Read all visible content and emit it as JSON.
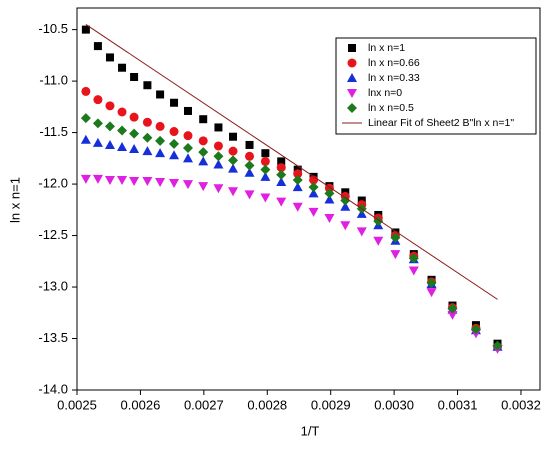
{
  "chart_data": {
    "type": "scatter",
    "x_label": "1/T",
    "y_label": "ln x  n=1",
    "xlim": [
      0.0025,
      0.00323
    ],
    "ylim": [
      -14.0,
      -10.29
    ],
    "xticks": [
      0.0025,
      0.0026,
      0.0027,
      0.0028,
      0.0029,
      {
        "value": 0.003,
        "label": "0.0030"
      },
      0.0031,
      0.0032
    ],
    "yticks": [
      -10.5,
      {
        "value": -11,
        "label": "-11.0"
      },
      -11.5,
      {
        "value": -12,
        "label": "-12.0"
      },
      -12.5,
      {
        "value": -13,
        "label": "-13.0"
      },
      -13.5,
      {
        "value": -14,
        "label": "-14.0"
      }
    ],
    "legend": "top-right",
    "x": [
      0.002514,
      0.002533,
      0.002552,
      0.002571,
      0.00259,
      0.002611,
      0.002631,
      0.002653,
      0.002675,
      0.002699,
      0.002723,
      0.002746,
      0.002772,
      0.002797,
      0.002822,
      0.002848,
      0.002873,
      0.002898,
      0.002923,
      0.002949,
      0.002975,
      0.003002,
      0.003031,
      0.003059,
      0.003092,
      0.003129,
      0.003163
    ],
    "series": [
      {
        "name": "ln x  n=1",
        "color": "#000000",
        "marker": "square",
        "values": [
          -10.5,
          -10.66,
          -10.77,
          -10.87,
          -10.96,
          -11.04,
          -11.13,
          -11.21,
          -11.29,
          -11.37,
          -11.45,
          -11.54,
          -11.62,
          -11.7,
          -11.78,
          -11.86,
          -11.93,
          -12.02,
          -12.08,
          -12.16,
          -12.3,
          -12.47,
          -12.68,
          -12.93,
          -13.18,
          -13.37,
          -13.55
        ]
      },
      {
        "name": "ln x n=0.66",
        "color": "#e8141b",
        "marker": "circle",
        "values": [
          -11.1,
          -11.18,
          -11.24,
          -11.3,
          -11.35,
          -11.4,
          -11.44,
          -11.49,
          -11.53,
          -11.58,
          -11.63,
          -11.68,
          -11.73,
          -11.78,
          -11.84,
          -11.9,
          -11.96,
          -12.04,
          -12.12,
          -12.2,
          -12.33,
          -12.5,
          -12.7,
          -12.95,
          -13.2,
          -13.4,
          -13.58
        ]
      },
      {
        "name": "ln x n=0.33",
        "color": "#1530d8",
        "marker": "triangle-up",
        "values": [
          -11.57,
          -11.6,
          -11.62,
          -11.64,
          -11.66,
          -11.68,
          -11.7,
          -11.72,
          -11.75,
          -11.78,
          -11.81,
          -11.85,
          -11.89,
          -11.93,
          -11.98,
          -12.03,
          -12.09,
          -12.15,
          -12.22,
          -12.29,
          -12.4,
          -12.55,
          -12.73,
          -12.97,
          -13.22,
          -13.42,
          -13.58
        ]
      },
      {
        "name": "lnx n=0",
        "color": "#e020e0",
        "marker": "triangle-down",
        "values": [
          -11.95,
          -11.95,
          -11.96,
          -11.96,
          -11.97,
          -11.97,
          -11.98,
          -11.99,
          -12.0,
          -12.02,
          -12.04,
          -12.07,
          -12.1,
          -12.13,
          -12.17,
          -12.22,
          -12.27,
          -12.33,
          -12.4,
          -12.46,
          -12.55,
          -12.68,
          -12.84,
          -13.05,
          -13.27,
          -13.45,
          -13.6
        ]
      },
      {
        "name": "ln x n=0.5",
        "color": "#1c7a1c",
        "marker": "diamond",
        "values": [
          -11.36,
          -11.41,
          -11.44,
          -11.48,
          -11.51,
          -11.55,
          -11.58,
          -11.61,
          -11.65,
          -11.69,
          -11.73,
          -11.77,
          -11.82,
          -11.86,
          -11.91,
          -11.96,
          -12.03,
          -12.09,
          -12.16,
          -12.24,
          -12.36,
          -12.52,
          -12.72,
          -12.96,
          -13.21,
          -13.41,
          -13.57
        ]
      }
    ],
    "fit": {
      "name": "Linear Fit of Sheet2 B\"ln x  n=1\"",
      "color": "#8b1a1a",
      "x": [
        0.002514,
        0.003163
      ],
      "values": [
        -10.45,
        -13.12
      ]
    }
  }
}
